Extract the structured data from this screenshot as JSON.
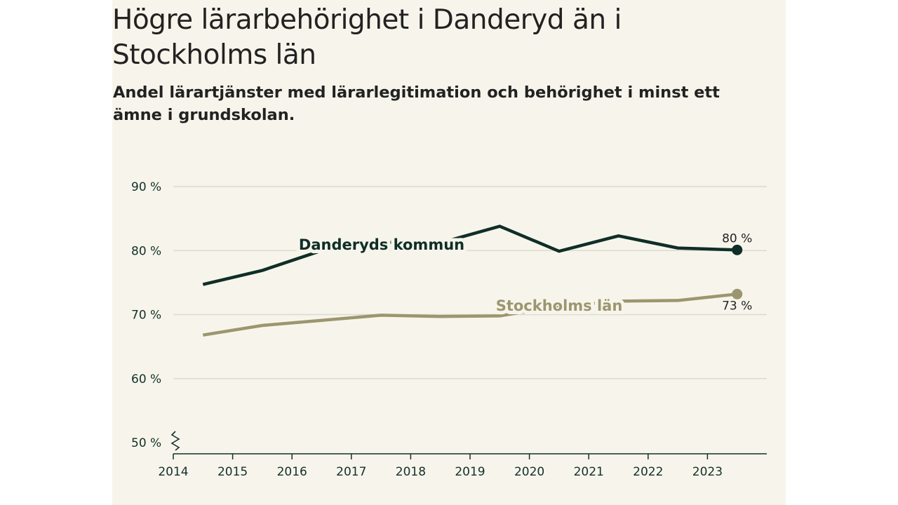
{
  "title": "Högre lärarbehörighet i Danderyd än i Stockholms län",
  "subtitle": "Andel lärartjänster med lärarlegitimation och behörighet i minst ett ämne i grundskolan.",
  "colors": {
    "background": "#f7f5eb",
    "danderyd": "#0f2e27",
    "stockholm": "#9c9670",
    "grid": "#dcd9cf",
    "axis": "#12302a"
  },
  "chart_data": {
    "type": "line",
    "title": "Högre lärarbehörighet i Danderyd än i Stockholms län",
    "subtitle": "Andel lärartjänster med lärarlegitimation och behörighet i minst ett ämne i grundskolan.",
    "xlabel": "",
    "ylabel": "",
    "x": [
      2014.5,
      2015.5,
      2016.5,
      2017.5,
      2018.5,
      2019.5,
      2020.5,
      2021.5,
      2022.5,
      2023.5
    ],
    "x_ticks": [
      "2014",
      "2015",
      "2016",
      "2017",
      "2018",
      "2019",
      "2020",
      "2021",
      "2022",
      "2023"
    ],
    "xlim": [
      2014,
      2024
    ],
    "y_ticks": [
      {
        "value": 50,
        "label": "50 %"
      },
      {
        "value": 60,
        "label": "60 %"
      },
      {
        "value": 70,
        "label": "70 %"
      },
      {
        "value": 80,
        "label": "80 %"
      },
      {
        "value": 90,
        "label": "90 %"
      }
    ],
    "ylim": [
      50,
      90
    ],
    "y_axis_break": true,
    "grid": true,
    "series": [
      {
        "name": "Danderyds kommun",
        "values": [
          74.7,
          76.9,
          80.0,
          81.3,
          81.2,
          83.8,
          79.9,
          82.3,
          80.4,
          80.1
        ],
        "end_label": "80 %",
        "color_key": "danderyd"
      },
      {
        "name": "Stockholms län",
        "values": [
          66.8,
          68.3,
          69.1,
          69.9,
          69.7,
          69.8,
          71.3,
          72.1,
          72.2,
          73.2
        ],
        "end_label": "73 %",
        "color_key": "stockholm"
      }
    ]
  }
}
